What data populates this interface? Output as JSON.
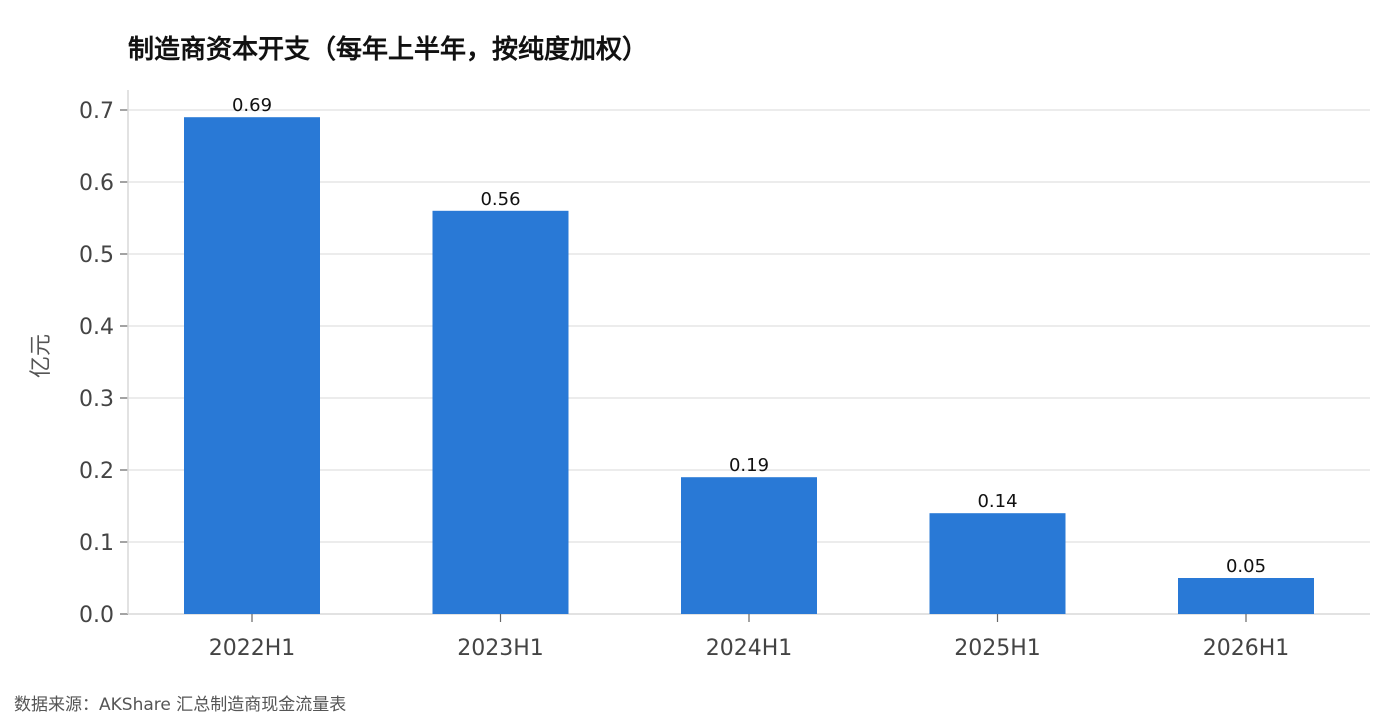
{
  "chart_data": {
    "type": "bar",
    "title": "制造商资本开支（每年上半年，按纯度加权）",
    "categories": [
      "2022H1",
      "2023H1",
      "2024H1",
      "2025H1",
      "2026H1"
    ],
    "values": [
      0.69,
      0.56,
      0.19,
      0.14,
      0.05
    ],
    "value_labels": [
      "0.69",
      "0.56",
      "0.19",
      "0.14",
      "0.05"
    ],
    "xlabel": "",
    "ylabel": "亿元",
    "ylim": [
      0,
      0.7
    ],
    "yticks": [
      "0.0",
      "0.1",
      "0.2",
      "0.3",
      "0.4",
      "0.5",
      "0.6",
      "0.7"
    ],
    "grid": true,
    "bar_color": "#2979d6",
    "grid_color": "#e6e6e6",
    "axis_color": "#d9d9d9"
  },
  "source": "数据来源：AKShare 汇总制造商现金流量表"
}
